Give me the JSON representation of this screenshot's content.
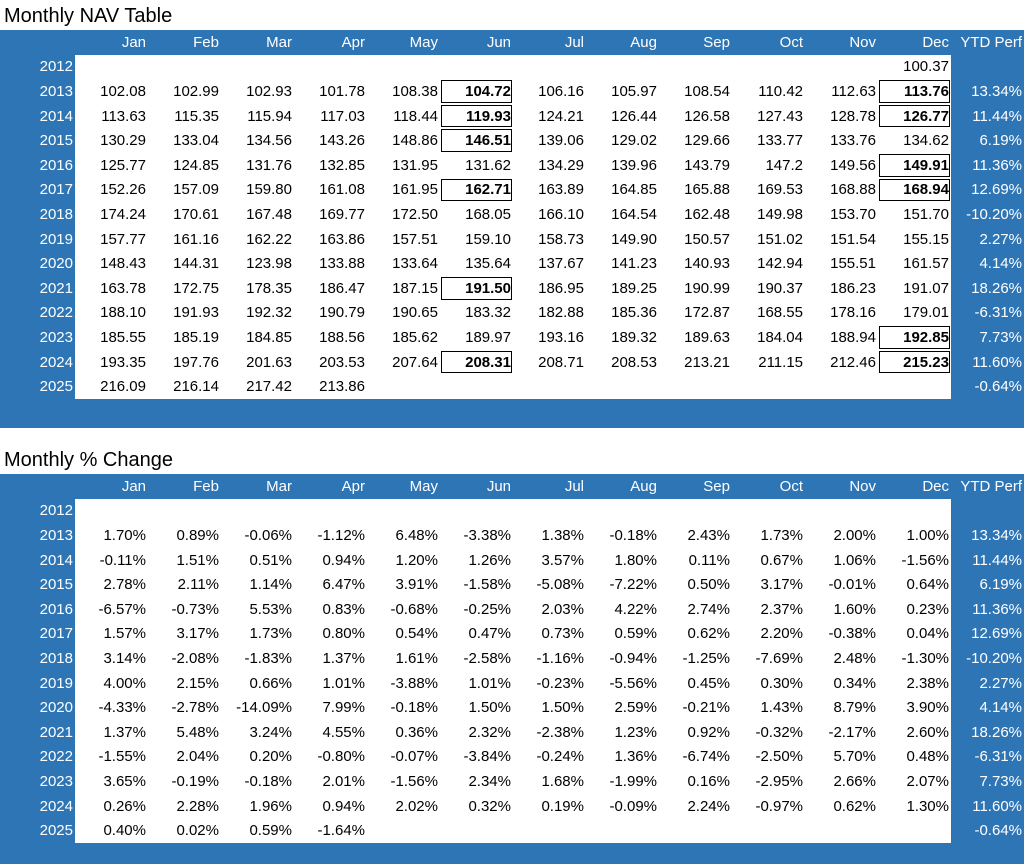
{
  "months": [
    "Jan",
    "Feb",
    "Mar",
    "Apr",
    "May",
    "Jun",
    "Jul",
    "Aug",
    "Sep",
    "Oct",
    "Nov",
    "Dec"
  ],
  "ytd_label": "YTD Perf",
  "nav_table": {
    "title": "Monthly NAV Table",
    "rows": [
      {
        "year": "2012",
        "values": [
          "",
          "",
          "",
          "",
          "",
          "",
          "",
          "",
          "",
          "",
          "",
          "100.37"
        ],
        "ytd": "",
        "highlight": []
      },
      {
        "year": "2013",
        "values": [
          "102.08",
          "102.99",
          "102.93",
          "101.78",
          "108.38",
          "104.72",
          "106.16",
          "105.97",
          "108.54",
          "110.42",
          "112.63",
          "113.76"
        ],
        "ytd": "13.34%",
        "highlight": [
          5,
          11
        ]
      },
      {
        "year": "2014",
        "values": [
          "113.63",
          "115.35",
          "115.94",
          "117.03",
          "118.44",
          "119.93",
          "124.21",
          "126.44",
          "126.58",
          "127.43",
          "128.78",
          "126.77"
        ],
        "ytd": "11.44%",
        "highlight": [
          5,
          11
        ]
      },
      {
        "year": "2015",
        "values": [
          "130.29",
          "133.04",
          "134.56",
          "143.26",
          "148.86",
          "146.51",
          "139.06",
          "129.02",
          "129.66",
          "133.77",
          "133.76",
          "134.62"
        ],
        "ytd": "6.19%",
        "highlight": [
          5
        ]
      },
      {
        "year": "2016",
        "values": [
          "125.77",
          "124.85",
          "131.76",
          "132.85",
          "131.95",
          "131.62",
          "134.29",
          "139.96",
          "143.79",
          "147.2",
          "149.56",
          "149.91"
        ],
        "ytd": "11.36%",
        "highlight": [
          11
        ]
      },
      {
        "year": "2017",
        "values": [
          "152.26",
          "157.09",
          "159.80",
          "161.08",
          "161.95",
          "162.71",
          "163.89",
          "164.85",
          "165.88",
          "169.53",
          "168.88",
          "168.94"
        ],
        "ytd": "12.69%",
        "highlight": [
          5,
          11
        ]
      },
      {
        "year": "2018",
        "values": [
          "174.24",
          "170.61",
          "167.48",
          "169.77",
          "172.50",
          "168.05",
          "166.10",
          "164.54",
          "162.48",
          "149.98",
          "153.70",
          "151.70"
        ],
        "ytd": "-10.20%",
        "highlight": []
      },
      {
        "year": "2019",
        "values": [
          "157.77",
          "161.16",
          "162.22",
          "163.86",
          "157.51",
          "159.10",
          "158.73",
          "149.90",
          "150.57",
          "151.02",
          "151.54",
          "155.15"
        ],
        "ytd": "2.27%",
        "highlight": []
      },
      {
        "year": "2020",
        "values": [
          "148.43",
          "144.31",
          "123.98",
          "133.88",
          "133.64",
          "135.64",
          "137.67",
          "141.23",
          "140.93",
          "142.94",
          "155.51",
          "161.57"
        ],
        "ytd": "4.14%",
        "highlight": []
      },
      {
        "year": "2021",
        "values": [
          "163.78",
          "172.75",
          "178.35",
          "186.47",
          "187.15",
          "191.50",
          "186.95",
          "189.25",
          "190.99",
          "190.37",
          "186.23",
          "191.07"
        ],
        "ytd": "18.26%",
        "highlight": [
          5
        ]
      },
      {
        "year": "2022",
        "values": [
          "188.10",
          "191.93",
          "192.32",
          "190.79",
          "190.65",
          "183.32",
          "182.88",
          "185.36",
          "172.87",
          "168.55",
          "178.16",
          "179.01"
        ],
        "ytd": "-6.31%",
        "highlight": []
      },
      {
        "year": "2023",
        "values": [
          "185.55",
          "185.19",
          "184.85",
          "188.56",
          "185.62",
          "189.97",
          "193.16",
          "189.32",
          "189.63",
          "184.04",
          "188.94",
          "192.85"
        ],
        "ytd": "7.73%",
        "highlight": [
          11
        ]
      },
      {
        "year": "2024",
        "values": [
          "193.35",
          "197.76",
          "201.63",
          "203.53",
          "207.64",
          "208.31",
          "208.71",
          "208.53",
          "213.21",
          "211.15",
          "212.46",
          "215.23"
        ],
        "ytd": "11.60%",
        "highlight": [
          5,
          11
        ]
      },
      {
        "year": "2025",
        "values": [
          "216.09",
          "216.14",
          "217.42",
          "213.86",
          "",
          "",
          "",
          "",
          "",
          "",
          "",
          ""
        ],
        "ytd": "-0.64%",
        "highlight": []
      }
    ]
  },
  "change_table": {
    "title": "Monthly % Change",
    "rows": [
      {
        "year": "2012",
        "values": [
          "",
          "",
          "",
          "",
          "",
          "",
          "",
          "",
          "",
          "",
          "",
          ""
        ],
        "ytd": ""
      },
      {
        "year": "2013",
        "values": [
          "1.70%",
          "0.89%",
          "-0.06%",
          "-1.12%",
          "6.48%",
          "-3.38%",
          "1.38%",
          "-0.18%",
          "2.43%",
          "1.73%",
          "2.00%",
          "1.00%"
        ],
        "ytd": "13.34%"
      },
      {
        "year": "2014",
        "values": [
          "-0.11%",
          "1.51%",
          "0.51%",
          "0.94%",
          "1.20%",
          "1.26%",
          "3.57%",
          "1.80%",
          "0.11%",
          "0.67%",
          "1.06%",
          "-1.56%"
        ],
        "ytd": "11.44%"
      },
      {
        "year": "2015",
        "values": [
          "2.78%",
          "2.11%",
          "1.14%",
          "6.47%",
          "3.91%",
          "-1.58%",
          "-5.08%",
          "-7.22%",
          "0.50%",
          "3.17%",
          "-0.01%",
          "0.64%"
        ],
        "ytd": "6.19%"
      },
      {
        "year": "2016",
        "values": [
          "-6.57%",
          "-0.73%",
          "5.53%",
          "0.83%",
          "-0.68%",
          "-0.25%",
          "2.03%",
          "4.22%",
          "2.74%",
          "2.37%",
          "1.60%",
          "0.23%"
        ],
        "ytd": "11.36%"
      },
      {
        "year": "2017",
        "values": [
          "1.57%",
          "3.17%",
          "1.73%",
          "0.80%",
          "0.54%",
          "0.47%",
          "0.73%",
          "0.59%",
          "0.62%",
          "2.20%",
          "-0.38%",
          "0.04%"
        ],
        "ytd": "12.69%"
      },
      {
        "year": "2018",
        "values": [
          "3.14%",
          "-2.08%",
          "-1.83%",
          "1.37%",
          "1.61%",
          "-2.58%",
          "-1.16%",
          "-0.94%",
          "-1.25%",
          "-7.69%",
          "2.48%",
          "-1.30%"
        ],
        "ytd": "-10.20%"
      },
      {
        "year": "2019",
        "values": [
          "4.00%",
          "2.15%",
          "0.66%",
          "1.01%",
          "-3.88%",
          "1.01%",
          "-0.23%",
          "-5.56%",
          "0.45%",
          "0.30%",
          "0.34%",
          "2.38%"
        ],
        "ytd": "2.27%"
      },
      {
        "year": "2020",
        "values": [
          "-4.33%",
          "-2.78%",
          "-14.09%",
          "7.99%",
          "-0.18%",
          "1.50%",
          "1.50%",
          "2.59%",
          "-0.21%",
          "1.43%",
          "8.79%",
          "3.90%"
        ],
        "ytd": "4.14%"
      },
      {
        "year": "2021",
        "values": [
          "1.37%",
          "5.48%",
          "3.24%",
          "4.55%",
          "0.36%",
          "2.32%",
          "-2.38%",
          "1.23%",
          "0.92%",
          "-0.32%",
          "-2.17%",
          "2.60%"
        ],
        "ytd": "18.26%"
      },
      {
        "year": "2022",
        "values": [
          "-1.55%",
          "2.04%",
          "0.20%",
          "-0.80%",
          "-0.07%",
          "-3.84%",
          "-0.24%",
          "1.36%",
          "-6.74%",
          "-2.50%",
          "5.70%",
          "0.48%"
        ],
        "ytd": "-6.31%"
      },
      {
        "year": "2023",
        "values": [
          "3.65%",
          "-0.19%",
          "-0.18%",
          "2.01%",
          "-1.56%",
          "2.34%",
          "1.68%",
          "-1.99%",
          "0.16%",
          "-2.95%",
          "2.66%",
          "2.07%"
        ],
        "ytd": "7.73%"
      },
      {
        "year": "2024",
        "values": [
          "0.26%",
          "2.28%",
          "1.96%",
          "0.94%",
          "2.02%",
          "0.32%",
          "0.19%",
          "-0.09%",
          "2.24%",
          "-0.97%",
          "0.62%",
          "1.30%"
        ],
        "ytd": "11.60%"
      },
      {
        "year": "2025",
        "values": [
          "0.40%",
          "0.02%",
          "0.59%",
          "-1.64%",
          "",
          "",
          "",
          "",
          "",
          "",
          "",
          ""
        ],
        "ytd": "-0.64%"
      }
    ]
  },
  "colors": {
    "panel": "#2e75b6",
    "cell": "#ffffff",
    "header_text": "#ffffff"
  }
}
